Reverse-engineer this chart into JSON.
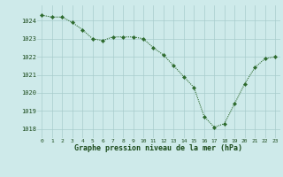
{
  "x": [
    0,
    1,
    2,
    3,
    4,
    5,
    6,
    7,
    8,
    9,
    10,
    11,
    12,
    13,
    14,
    15,
    16,
    17,
    18,
    19,
    20,
    21,
    22,
    23
  ],
  "y": [
    1024.3,
    1024.2,
    1024.2,
    1023.9,
    1023.5,
    1023.0,
    1022.9,
    1023.1,
    1023.1,
    1023.1,
    1023.0,
    1022.5,
    1022.1,
    1021.5,
    1020.9,
    1020.3,
    1018.7,
    1018.1,
    1018.3,
    1019.4,
    1020.5,
    1021.4,
    1021.9,
    1022.0
  ],
  "line_color": "#2d6a2d",
  "marker_color": "#2d6a2d",
  "bg_color": "#ceeaea",
  "grid_color": "#a8cccc",
  "xlabel": "Graphe pression niveau de la mer (hPa)",
  "xlabel_color": "#1a4a1a",
  "tick_color": "#1a4a1a",
  "ylim_min": 1017.5,
  "ylim_max": 1024.85,
  "yticks": [
    1018,
    1019,
    1020,
    1021,
    1022,
    1023,
    1024
  ],
  "xticks": [
    0,
    1,
    2,
    3,
    4,
    5,
    6,
    7,
    8,
    9,
    10,
    11,
    12,
    13,
    14,
    15,
    16,
    17,
    18,
    19,
    20,
    21,
    22,
    23
  ],
  "figsize": [
    3.2,
    2.0
  ],
  "dpi": 100
}
